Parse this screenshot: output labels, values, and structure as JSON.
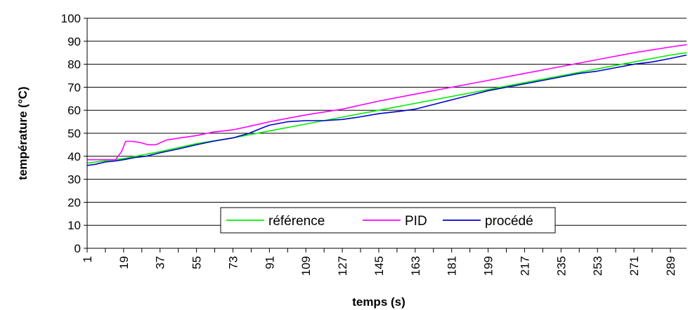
{
  "chart_data": {
    "type": "line",
    "xlabel": "temps (s)",
    "ylabel": "température (°C)",
    "ylim": [
      0,
      100
    ],
    "yticks": [
      0,
      10,
      20,
      30,
      40,
      50,
      60,
      70,
      80,
      90,
      100
    ],
    "xlim": [
      1,
      297
    ],
    "xticks": [
      "1",
      "19",
      "37",
      "55",
      "73",
      "91",
      "109",
      "127",
      "145",
      "163",
      "181",
      "199",
      "217",
      "235",
      "253",
      "271",
      "289"
    ],
    "grid": "horizontal",
    "legend_position": "bottom-center",
    "series": [
      {
        "name": "référence",
        "color": "#00ee00",
        "x": [
          1,
          19,
          37,
          55,
          73,
          91,
          109,
          127,
          145,
          163,
          181,
          199,
          217,
          235,
          253,
          271,
          289,
          297
        ],
        "y": [
          37,
          39,
          42,
          45.5,
          48,
          51,
          54,
          57,
          60,
          63,
          66,
          69,
          72,
          75,
          78,
          81,
          84,
          85
        ]
      },
      {
        "name": "PID",
        "color": "#ff00ff",
        "x": [
          1,
          10,
          15,
          18,
          20,
          23,
          27,
          31,
          35,
          40,
          47,
          55,
          63,
          73,
          81,
          91,
          100,
          109,
          120,
          127,
          145,
          163,
          181,
          199,
          217,
          235,
          253,
          271,
          289,
          297
        ],
        "y": [
          38.5,
          38.5,
          38.5,
          42,
          46.5,
          46.5,
          46,
          45,
          45,
          47,
          48,
          49,
          50.5,
          51.5,
          53,
          55,
          56.5,
          58,
          59.5,
          60.5,
          64,
          67,
          70,
          73,
          76,
          79,
          82,
          85,
          87.5,
          88.5
        ]
      },
      {
        "name": "procédé",
        "color": "#0000cc",
        "x": [
          1,
          5,
          10,
          15,
          19,
          25,
          30,
          37,
          45,
          55,
          63,
          73,
          81,
          88,
          91,
          100,
          109,
          118,
          127,
          135,
          145,
          155,
          163,
          172,
          181,
          190,
          199,
          208,
          217,
          226,
          235,
          244,
          253,
          262,
          271,
          280,
          289,
          297
        ],
        "y": [
          36,
          36.5,
          37.5,
          38,
          38.5,
          39.5,
          40,
          41.5,
          43,
          45,
          46.5,
          48,
          50,
          52.5,
          53.5,
          55,
          55.5,
          55.5,
          56,
          57,
          58.5,
          59.5,
          60.5,
          62.5,
          64.5,
          66.5,
          68.5,
          70,
          71.5,
          73,
          74.5,
          76,
          77,
          78.5,
          80,
          81,
          82.5,
          84
        ]
      }
    ]
  }
}
